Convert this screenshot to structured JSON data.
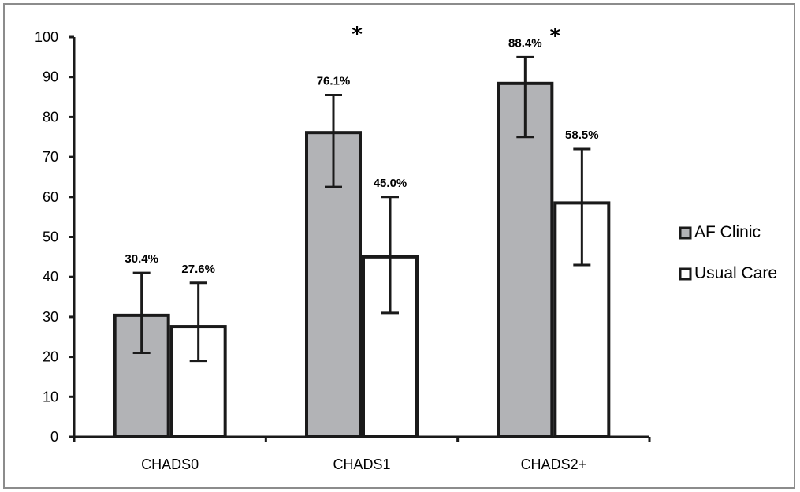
{
  "chart_data": {
    "type": "bar",
    "categories": [
      "CHADS0",
      "CHADS1",
      "CHADS2+"
    ],
    "series": [
      {
        "name": "AF Clinic",
        "values": [
          30.4,
          76.1,
          88.4
        ],
        "error_low": [
          21,
          62.5,
          75
        ],
        "error_high": [
          41,
          85.5,
          95
        ],
        "labels": [
          "30.4%",
          "76.1%",
          "88.4%"
        ],
        "fill": "#b2b3b6"
      },
      {
        "name": "Usual Care",
        "values": [
          27.6,
          45.0,
          58.5
        ],
        "error_low": [
          19,
          31,
          43
        ],
        "error_high": [
          38.5,
          60,
          72
        ],
        "labels": [
          "27.6%",
          "45.0%",
          "58.5%"
        ],
        "fill": "#ffffff"
      }
    ],
    "annotations": [
      {
        "text": "*",
        "category": "CHADS1"
      },
      {
        "text": "*",
        "category": "CHADS2+"
      }
    ],
    "ylim": [
      0,
      100
    ],
    "yticks": [
      0,
      10,
      20,
      30,
      40,
      50,
      60,
      70,
      80,
      90,
      100
    ],
    "xlabel": "",
    "ylabel": "",
    "title": "",
    "grid": false,
    "legend_position": "right"
  },
  "colors": {
    "bar_stroke": "#1a1a1a",
    "axis": "#1a1a1a",
    "frame": "#8c8c8c"
  }
}
